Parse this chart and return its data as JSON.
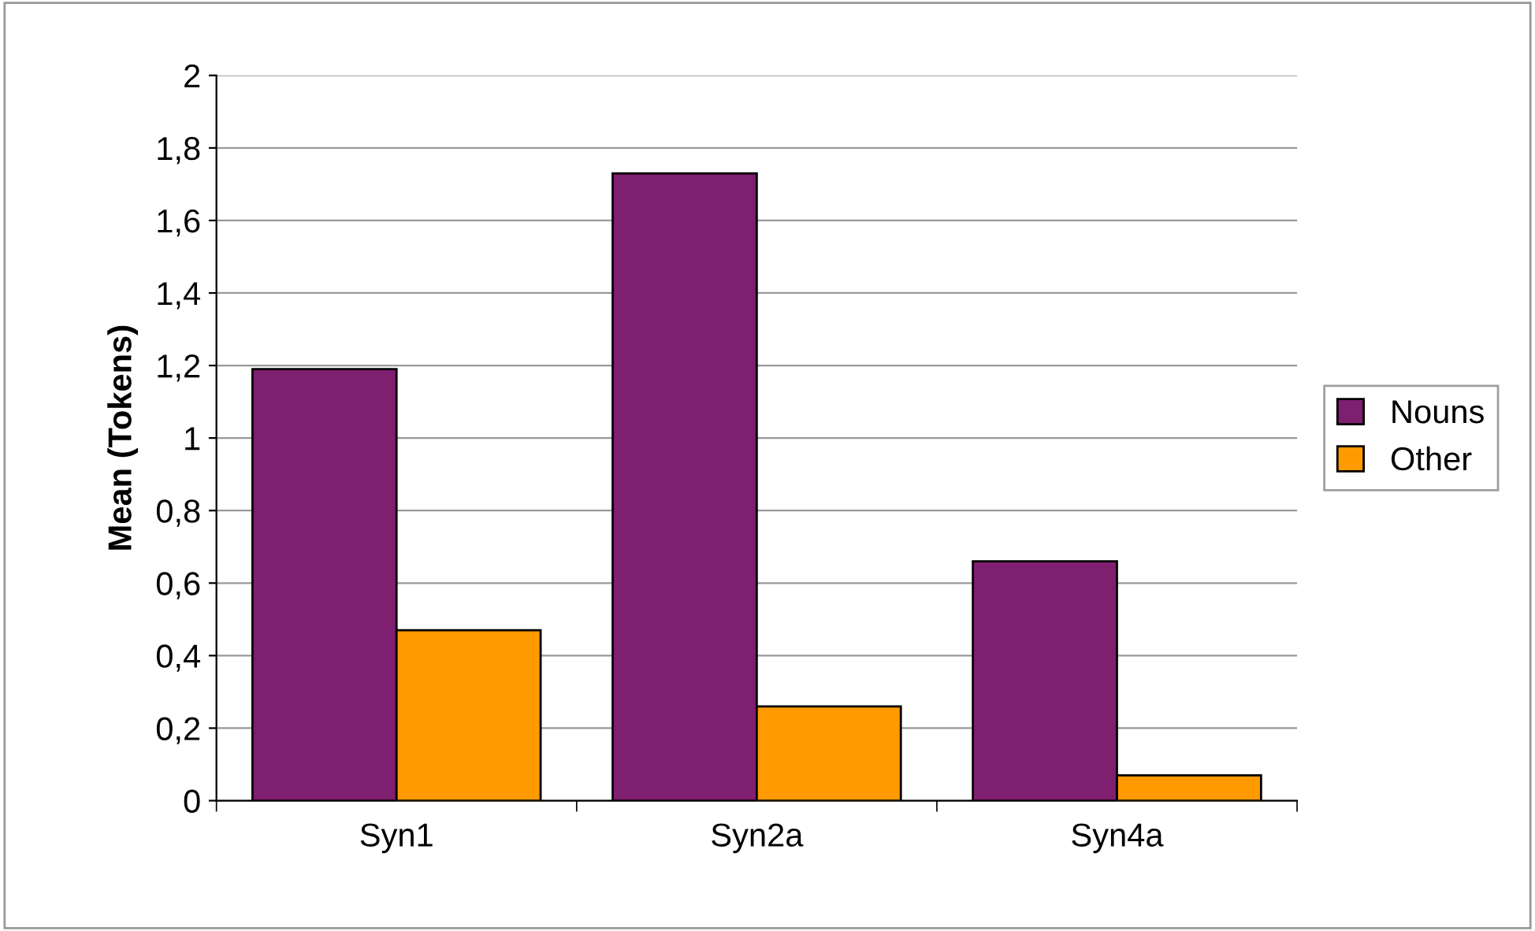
{
  "chart_data": {
    "type": "bar",
    "ylabel": "Mean (Tokens)",
    "categories": [
      "Syn1",
      "Syn2a",
      "Syn4a"
    ],
    "series": [
      {
        "name": "Nouns",
        "color": "#7f1f6f",
        "values": [
          1.19,
          1.73,
          0.66
        ]
      },
      {
        "name": "Other",
        "color": "#ff9a00",
        "values": [
          0.47,
          0.26,
          0.07
        ]
      }
    ],
    "ylim": [
      0,
      2
    ],
    "yticks": [
      0,
      {
        "value": 0.2,
        "label": "0,2"
      },
      {
        "value": 0.4,
        "label": "0,4"
      },
      {
        "value": 0.6,
        "label": "0,6"
      },
      {
        "value": 0.8,
        "label": "0,8"
      },
      1,
      {
        "value": 1.2,
        "label": "1,2"
      },
      {
        "value": 1.4,
        "label": "1,4"
      },
      {
        "value": 1.6,
        "label": "1,6"
      },
      {
        "value": 1.8,
        "label": "1,8"
      },
      2
    ],
    "grid": "y",
    "legend": "right"
  }
}
